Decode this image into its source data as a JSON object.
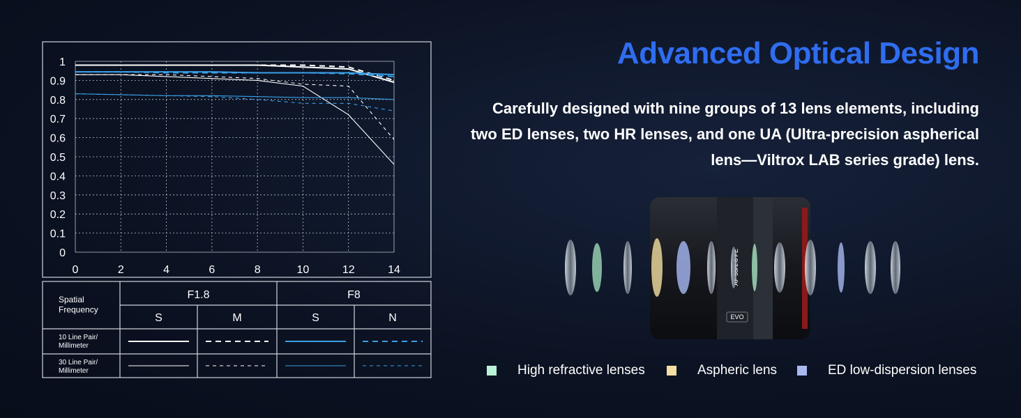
{
  "chart_data": {
    "type": "line",
    "x": [
      0,
      2,
      4,
      6,
      8,
      10,
      12,
      14
    ],
    "xlim": [
      0,
      14
    ],
    "xticks": [
      0,
      2,
      4,
      6,
      8,
      10,
      12,
      14
    ],
    "ylim": [
      0,
      1
    ],
    "yticks": [
      0,
      0.1,
      0.2,
      0.3,
      0.4,
      0.5,
      0.6,
      0.7,
      0.8,
      0.9,
      1
    ],
    "grid": true,
    "series": [
      {
        "color": "#ffffff",
        "dash": "solid",
        "weight": "thick",
        "values": [
          0.98,
          0.98,
          0.98,
          0.98,
          0.98,
          0.97,
          0.96,
          0.89
        ]
      },
      {
        "color": "#ffffff",
        "dash": "dashed",
        "weight": "thick",
        "values": [
          0.98,
          0.98,
          0.98,
          0.98,
          0.98,
          0.98,
          0.97,
          0.9
        ]
      },
      {
        "color": "#3aa0e8",
        "dash": "solid",
        "weight": "thick",
        "values": [
          0.945,
          0.945,
          0.945,
          0.945,
          0.94,
          0.94,
          0.94,
          0.93
        ]
      },
      {
        "color": "#3aa0e8",
        "dash": "dashed",
        "weight": "thick",
        "values": [
          0.945,
          0.945,
          0.94,
          0.94,
          0.94,
          0.94,
          0.935,
          0.92
        ]
      },
      {
        "color": "#ffffff",
        "dash": "solid",
        "weight": "thin",
        "values": [
          0.93,
          0.93,
          0.92,
          0.91,
          0.9,
          0.87,
          0.72,
          0.46
        ]
      },
      {
        "color": "#ffffff",
        "dash": "dashed",
        "weight": "thin",
        "values": [
          0.93,
          0.93,
          0.93,
          0.92,
          0.91,
          0.88,
          0.87,
          0.59
        ]
      },
      {
        "color": "#3aa0e8",
        "dash": "solid",
        "weight": "thin",
        "values": [
          0.83,
          0.825,
          0.82,
          0.82,
          0.815,
          0.81,
          0.81,
          0.8
        ]
      },
      {
        "color": "#3aa0e8",
        "dash": "dashed",
        "weight": "thin",
        "values": [
          0.83,
          0.825,
          0.82,
          0.815,
          0.8,
          0.78,
          0.78,
          0.74
        ]
      }
    ],
    "legend_table": {
      "corner_label": "Spatial\nFrequency",
      "apertures": [
        "F1.8",
        "F8"
      ],
      "directions": [
        "S",
        "M",
        "S",
        "N"
      ],
      "rows": [
        "10 Line Pair/\nMillimeter",
        "30 Line Pair/\nMillimeter"
      ]
    }
  },
  "header": {
    "title": "Advanced Optical Design",
    "description": "Carefully designed with nine groups of 13 lens elements, including\ntwo ED lenses, two HR lenses, and one UA (Ultra-precision aspherical\nlens—Viltrox LAB series grade) lens."
  },
  "lens": {
    "model": "AF 55/1.8 FE",
    "badge": "EVO"
  },
  "lens_legend": [
    {
      "label": "High refractive lenses",
      "color": "#b9f2d6"
    },
    {
      "label": "Aspheric lens",
      "color": "#f4dea4"
    },
    {
      "label": "ED low-dispersion lenses",
      "color": "#a9b9f0"
    }
  ]
}
